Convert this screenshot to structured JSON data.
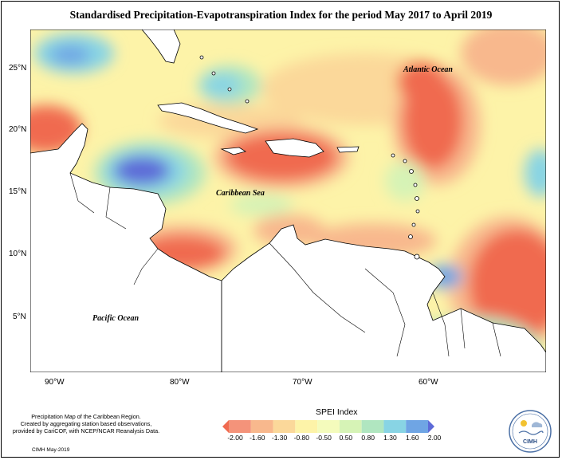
{
  "title": "Standardised Precipitation-Evapotranspiration Index for the period May 2017 to April 2019",
  "map": {
    "projection": "lat-lon",
    "lon_range": [
      -92,
      -51
    ],
    "lat_range": [
      2,
      28
    ],
    "lat_labels": [
      "25°N",
      "20°N",
      "15°N",
      "10°N",
      "5°N"
    ],
    "lon_labels": [
      "90°W",
      "80°W",
      "70°W",
      "60°W"
    ],
    "region_labels": {
      "atlantic": "Atlantic Ocean",
      "caribbean": "Caribbean Sea",
      "pacific": "Pacific Ocean"
    },
    "land_color": "#ffffff",
    "coastline_color": "#000000"
  },
  "legend": {
    "title": "SPEI Index",
    "ticks": [
      "-2.00",
      "-1.60",
      "-1.30",
      "-0.80",
      "-0.50",
      "0.50",
      "0.80",
      "1.30",
      "1.60",
      "2.00"
    ],
    "colors": [
      "#f06a50",
      "#f4937a",
      "#f8b88d",
      "#fbd89a",
      "#fdf3a8",
      "#f4fbbc",
      "#d6f3b6",
      "#b0e6c0",
      "#88d4e4",
      "#6fa5e4",
      "#5d6ad8"
    ]
  },
  "notes": {
    "line1": "Precipitation Map of the Caribbean Region.",
    "line2": "Created by aggregating station based observations,",
    "line3": "provided by CariCOF, with NCEP/NCAR Reanalysis Data.",
    "credit": "CIMH May-2019"
  },
  "logo": {
    "text": "CIMH",
    "icon": "cimh-logo-icon"
  }
}
